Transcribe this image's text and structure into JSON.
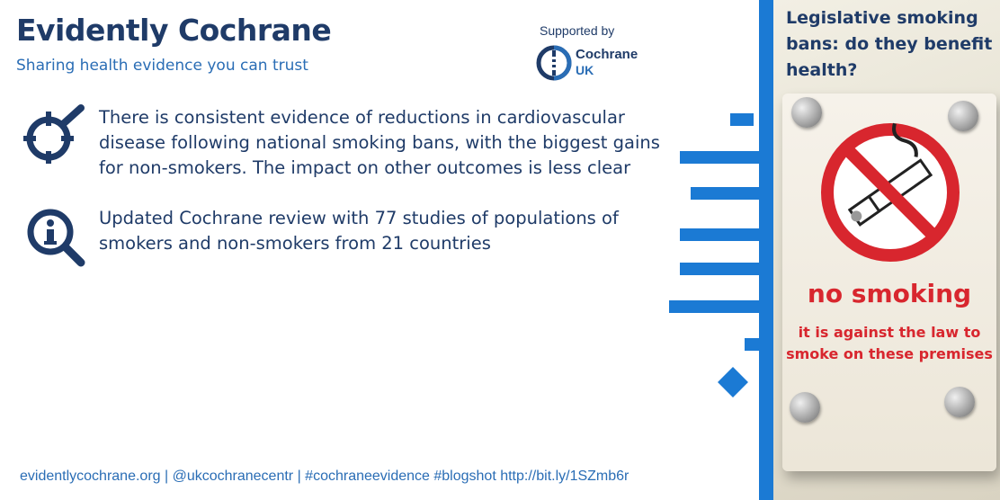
{
  "header": {
    "title": "Evidently Cochrane",
    "subtitle": "Sharing health evidence you can trust"
  },
  "sponsor": {
    "label": "Supported by",
    "name": "Cochrane",
    "region": "UK",
    "icon": "cochrane-logo-icon"
  },
  "points": [
    {
      "icon": "target-magnifier-icon",
      "text": "There is consistent evidence of reductions in cardiovascular disease following national smoking bans, with the biggest gains for non-smokers. The impact on other outcomes is less clear"
    },
    {
      "icon": "info-magnifier-icon",
      "text": "Updated Cochrane review with 77 studies of populations of smokers and non-smokers from 21 countries"
    }
  ],
  "footer": {
    "text": "evidentlycochrane.org | @ukcochranecentr | #cochraneevidence #blogshot http://bit.ly/1SZmb6r"
  },
  "photo": {
    "title": "Legislative smoking bans: do they benefit health?",
    "sign_heading": "no smoking",
    "sign_text": "it is against the law to smoke on these premises"
  },
  "colors": {
    "navy": "#1f3b68",
    "blue": "#2a6db5",
    "accent": "#1b7ad4",
    "sign_red": "#d8262e"
  }
}
